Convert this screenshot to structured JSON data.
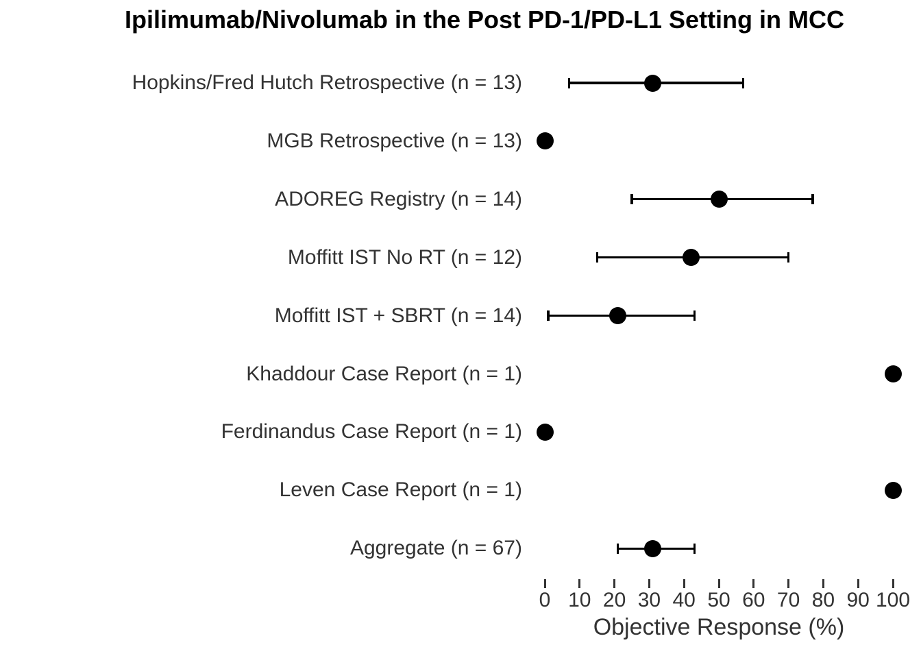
{
  "title": "Ipilimumab/Nivolumab in the Post PD-1/PD-L1 Setting in MCC",
  "colors": {
    "background": "#ffffff",
    "title_text": "#000000",
    "label_text": "#333333",
    "axis_text": "#333333",
    "marker": "#000000"
  },
  "chart_data": {
    "type": "scatter",
    "subtype": "forest-plot",
    "title": "Ipilimumab/Nivolumab in the Post PD-1/PD-L1 Setting in MCC",
    "xlabel": "Objective Response (%)",
    "ylabel": "",
    "xlim": [
      0,
      100
    ],
    "xticks": [
      0,
      10,
      20,
      30,
      40,
      50,
      60,
      70,
      80,
      90,
      100
    ],
    "grid": false,
    "legend": "none",
    "marker_color": "#000000",
    "studies": [
      {
        "label": "Hopkins/Fred Hutch Retrospective (n = 13)",
        "value": 31,
        "ci_low": 7,
        "ci_high": 57
      },
      {
        "label": "MGB Retrospective (n = 13)",
        "value": 0,
        "ci_low": null,
        "ci_high": null
      },
      {
        "label": "ADOREG Registry (n = 14)",
        "value": 50,
        "ci_low": 25,
        "ci_high": 77
      },
      {
        "label": "Moffitt IST No RT (n = 12)",
        "value": 42,
        "ci_low": 15,
        "ci_high": 70
      },
      {
        "label": "Moffitt IST + SBRT (n = 14)",
        "value": 21,
        "ci_low": 1,
        "ci_high": 43
      },
      {
        "label": "Khaddour Case Report (n = 1)",
        "value": 100,
        "ci_low": null,
        "ci_high": null
      },
      {
        "label": "Ferdinandus Case Report (n = 1)",
        "value": 0,
        "ci_low": null,
        "ci_high": null
      },
      {
        "label": "Leven Case Report (n = 1)",
        "value": 100,
        "ci_low": null,
        "ci_high": null
      },
      {
        "label": "Aggregate (n = 67)",
        "value": 31,
        "ci_low": 21,
        "ci_high": 43
      }
    ]
  }
}
